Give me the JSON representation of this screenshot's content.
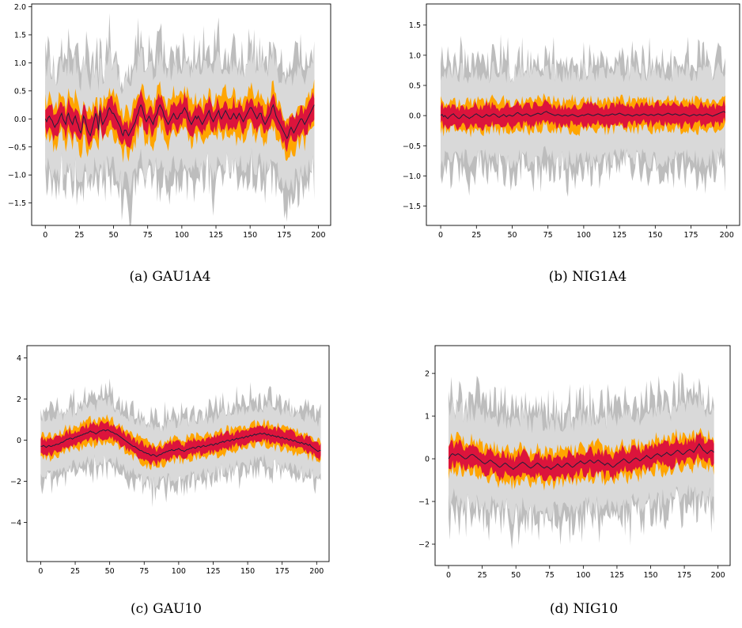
{
  "colors": {
    "outer_band": "#d9d9d9",
    "outer_band_extreme": "#bdbdbd",
    "mid_band": "#ffa500",
    "inner_band": "#dc143c",
    "center_line": "#1f1f3a"
  },
  "chart_data": [
    {
      "type": "area",
      "id": "a",
      "caption": "(a)  GAU1A4",
      "x_range": [
        0,
        199
      ],
      "xlim": [
        -10,
        209
      ],
      "ylim": [
        -1.9,
        2.05
      ],
      "xticks": [
        0,
        25,
        50,
        75,
        100,
        125,
        150,
        175,
        200
      ],
      "yticks": [
        -1.5,
        -1.0,
        -0.5,
        0.0,
        0.5,
        1.0,
        1.5,
        2.0
      ],
      "ytick_labels": [
        "−1.5",
        "−1.0",
        "−0.5",
        "0.0",
        "0.5",
        "1.0",
        "1.5",
        "2.0"
      ],
      "series": [
        {
          "role": "outer",
          "values": [
            0.0,
            -0.05,
            0.02,
            0.05,
            0.0,
            -0.03,
            -0.1,
            -0.15,
            -0.1,
            -0.08,
            -0.02,
            0.05,
            0.1,
            0.0,
            -0.05,
            -0.1,
            0.05,
            0.1,
            0.0,
            -0.05,
            -0.1,
            0.0,
            0.05,
            -0.05,
            -0.1,
            -0.2,
            -0.25,
            -0.15,
            0.05,
            0.0,
            -0.1,
            -0.2,
            -0.25,
            -0.3,
            -0.2,
            -0.1,
            0.0,
            0.1,
            0.0,
            -0.2,
            0.15,
            0.0,
            -0.1,
            -0.05,
            0.0,
            0.05,
            0.15,
            0.2,
            0.15,
            0.1,
            0.1,
            0.05,
            0.0,
            -0.05,
            -0.1,
            -0.15,
            -0.25,
            -0.3,
            -0.2,
            -0.2,
            -0.25,
            -0.3,
            -0.25,
            -0.2,
            -0.15,
            -0.1,
            -0.05,
            0.05,
            0.1,
            0.2,
            0.25,
            0.2,
            0.1,
            0.0,
            -0.05,
            0.0,
            0.05,
            0.0,
            -0.05,
            -0.1,
            0.0,
            0.05,
            0.1,
            0.2,
            0.25,
            0.2,
            0.15,
            0.05,
            0.0,
            -0.05,
            -0.1,
            -0.05,
            0.0,
            0.05,
            0.1,
            0.05,
            0.0,
            0.0,
            0.05,
            0.1,
            0.1,
            0.15,
            0.2,
            0.15,
            0.1,
            0.0,
            -0.05,
            -0.1,
            -0.05,
            0.0,
            0.05,
            0.0,
            0.05,
            0.0,
            -0.05,
            -0.1,
            -0.05,
            0.0,
            0.05,
            0.1,
            0.15,
            0.05,
            0.0,
            -0.05,
            0.0,
            0.05,
            0.1,
            0.15,
            0.05,
            0.0,
            0.05,
            0.1,
            0.15,
            0.1,
            0.05,
            0.0,
            0.0,
            0.05,
            0.1,
            0.05,
            0.0,
            0.05,
            0.1,
            0.05,
            0.0,
            -0.05,
            0.0,
            0.05,
            0.1,
            0.15,
            0.2,
            0.2,
            0.15,
            0.1,
            0.05,
            0.0,
            0.05,
            0.1,
            0.1,
            0.0,
            -0.05,
            -0.1,
            -0.05,
            0.0,
            0.05,
            0.1,
            0.2,
            0.25,
            0.15,
            0.05,
            0.0,
            -0.05,
            -0.1,
            -0.15,
            -0.2,
            -0.25,
            -0.3,
            -0.35,
            -0.3,
            -0.2,
            -0.15,
            -0.2,
            -0.25,
            -0.2,
            -0.15,
            -0.1,
            -0.05,
            0.0,
            0.0,
            -0.05,
            -0.1,
            -0.05,
            0.0,
            0.05,
            0.1,
            0.15,
            0.2,
            0.25
          ]
        },
        {
          "role": "outer_width",
          "values": [
            0.9
          ]
        },
        {
          "role": "mid_width",
          "values": [
            0.36
          ]
        },
        {
          "role": "inner_width",
          "values": [
            0.22
          ]
        }
      ]
    },
    {
      "type": "area",
      "id": "b",
      "caption": "(b)  NIG1A4",
      "x_range": [
        0,
        199
      ],
      "xlim": [
        -10,
        209
      ],
      "ylim": [
        -1.82,
        1.85
      ],
      "xticks": [
        0,
        25,
        50,
        75,
        100,
        125,
        150,
        175,
        200
      ],
      "yticks": [
        -1.5,
        -1.0,
        -0.5,
        0.0,
        0.5,
        1.0,
        1.5
      ],
      "ytick_labels": [
        "−1.5",
        "−1.0",
        "−0.5",
        "0.0",
        "0.5",
        "1.0",
        "1.5"
      ],
      "series": [
        {
          "role": "outer",
          "values": [
            0.0,
            0.02,
            -0.02,
            0.0,
            -0.03,
            -0.05,
            -0.02,
            0.0,
            0.02,
            0.03,
            0.0,
            -0.02,
            -0.04,
            -0.05,
            -0.03,
            0.0,
            0.02,
            0.0,
            -0.02,
            -0.03,
            -0.05,
            -0.03,
            -0.02,
            0.0,
            0.02,
            0.03,
            0.01,
            0.0,
            -0.02,
            -0.03,
            -0.02,
            0.0,
            0.02,
            0.0,
            -0.01,
            0.0,
            0.02,
            0.03,
            0.02,
            0.0,
            -0.02,
            -0.03,
            -0.01,
            0.0,
            0.02,
            0.0,
            -0.02,
            0.0,
            0.01,
            0.0,
            -0.01,
            0.0,
            0.02,
            0.04,
            0.05,
            0.03,
            0.02,
            0.0,
            0.01,
            0.02,
            0.03,
            0.02,
            0.0,
            -0.01,
            0.0,
            0.01,
            0.02,
            0.03,
            0.04,
            0.03,
            0.02,
            0.03,
            0.05,
            0.06,
            0.07,
            0.05,
            0.04,
            0.03,
            0.02,
            0.01,
            0.0,
            0.01,
            0.02,
            0.01,
            0.0,
            -0.01,
            0.0,
            0.01,
            0.0,
            -0.01,
            0.0,
            0.01,
            0.02,
            0.01,
            0.0,
            -0.01,
            -0.02,
            -0.01,
            0.0,
            0.01,
            0.0,
            0.01,
            0.02,
            0.03,
            0.02,
            0.01,
            0.0,
            0.0,
            0.01,
            0.02,
            0.03,
            0.02,
            0.01,
            0.0,
            -0.01,
            0.0,
            0.01,
            0.0,
            0.01,
            0.02,
            0.03,
            0.02,
            0.01,
            0.02,
            0.03,
            0.04,
            0.03,
            0.02,
            0.01,
            0.0,
            0.01,
            0.02,
            0.01,
            0.0,
            -0.01,
            0.0,
            0.01,
            0.02,
            0.01,
            0.0,
            0.01,
            0.02,
            0.03,
            0.02,
            0.01,
            0.0,
            0.01,
            0.02,
            0.01,
            0.0,
            0.01,
            0.02,
            0.03,
            0.02,
            0.01,
            0.0,
            0.01,
            0.02,
            0.03,
            0.04,
            0.03,
            0.02,
            0.01,
            0.02,
            0.03,
            0.02,
            0.01,
            0.0,
            0.01,
            0.02,
            0.03,
            0.02,
            0.01,
            0.0,
            -0.01,
            0.0,
            0.01,
            0.02,
            0.01,
            0.0,
            0.01,
            0.02,
            0.01,
            0.0,
            0.01,
            0.02,
            0.03,
            0.02,
            0.01,
            0.0,
            -0.01,
            0.0,
            0.01,
            0.02,
            0.03,
            0.04,
            0.05,
            0.06,
            0.07,
            0.05
          ]
        },
        {
          "role": "outer_width",
          "values": [
            0.72
          ]
        },
        {
          "role": "mid_width",
          "values": [
            0.24
          ]
        },
        {
          "role": "inner_width",
          "values": [
            0.17
          ]
        }
      ]
    },
    {
      "type": "area",
      "id": "c",
      "caption": "(c)  GAU10",
      "x_range": [
        0,
        199
      ],
      "xlim": [
        -10,
        209
      ],
      "ylim": [
        -5.9,
        4.6
      ],
      "xticks": [
        0,
        25,
        50,
        75,
        100,
        125,
        150,
        175,
        200
      ],
      "yticks": [
        -4,
        -2,
        0,
        2,
        4
      ],
      "ytick_labels": [
        "−4",
        "−2",
        "0",
        "2",
        "4"
      ],
      "series": [
        {
          "role": "outer",
          "values": [
            -0.3,
            -0.3,
            -0.25,
            -0.3,
            -0.35,
            -0.3,
            -0.25,
            -0.3,
            -0.3,
            -0.25,
            -0.25,
            -0.2,
            -0.2,
            -0.2,
            -0.15,
            -0.1,
            -0.1,
            -0.05,
            0.0,
            0.05,
            0.05,
            0.1,
            0.1,
            0.05,
            0.1,
            0.15,
            0.15,
            0.2,
            0.2,
            0.25,
            0.25,
            0.3,
            0.3,
            0.35,
            0.35,
            0.4,
            0.45,
            0.4,
            0.4,
            0.35,
            0.3,
            0.35,
            0.4,
            0.45,
            0.45,
            0.5,
            0.5,
            0.45,
            0.5,
            0.5,
            0.45,
            0.4,
            0.4,
            0.35,
            0.3,
            0.3,
            0.25,
            0.2,
            0.15,
            0.1,
            0.05,
            0.0,
            -0.05,
            -0.1,
            -0.15,
            -0.2,
            -0.25,
            -0.3,
            -0.3,
            -0.35,
            -0.4,
            -0.45,
            -0.5,
            -0.5,
            -0.55,
            -0.6,
            -0.6,
            -0.65,
            -0.65,
            -0.7,
            -0.75,
            -0.7,
            -0.7,
            -0.75,
            -0.8,
            -0.75,
            -0.7,
            -0.7,
            -0.65,
            -0.6,
            -0.6,
            -0.55,
            -0.55,
            -0.5,
            -0.5,
            -0.45,
            -0.5,
            -0.5,
            -0.45,
            -0.45,
            -0.4,
            -0.45,
            -0.5,
            -0.5,
            -0.55,
            -0.5,
            -0.45,
            -0.45,
            -0.4,
            -0.4,
            -0.35,
            -0.35,
            -0.4,
            -0.35,
            -0.3,
            -0.3,
            -0.35,
            -0.3,
            -0.25,
            -0.3,
            -0.3,
            -0.25,
            -0.25,
            -0.2,
            -0.2,
            -0.25,
            -0.2,
            -0.15,
            -0.2,
            -0.15,
            -0.1,
            -0.1,
            -0.05,
            -0.1,
            -0.05,
            0.0,
            0.0,
            -0.05,
            0.0,
            0.05,
            0.0,
            0.05,
            0.1,
            0.05,
            0.1,
            0.1,
            0.15,
            0.1,
            0.15,
            0.2,
            0.15,
            0.2,
            0.25,
            0.2,
            0.25,
            0.3,
            0.25,
            0.3,
            0.3,
            0.35,
            0.3,
            0.3,
            0.35,
            0.3,
            0.25,
            0.3,
            0.25,
            0.2,
            0.25,
            0.2,
            0.2,
            0.15,
            0.2,
            0.15,
            0.1,
            0.15,
            0.1,
            0.05,
            0.1,
            0.05,
            0.0,
            0.05,
            0.0,
            -0.05,
            0.0,
            -0.05,
            -0.1,
            -0.1,
            -0.15,
            -0.1,
            -0.15,
            -0.2,
            -0.15,
            -0.2,
            -0.25,
            -0.2,
            -0.3,
            -0.35,
            -0.4,
            -0.45,
            -0.5,
            -0.55,
            -0.5,
            -0.5
          ]
        },
        {
          "role": "outer_width",
          "values": [
            1.35
          ]
        },
        {
          "role": "mid_width",
          "values": [
            0.55
          ]
        },
        {
          "role": "inner_width",
          "values": [
            0.38
          ]
        }
      ]
    },
    {
      "type": "area",
      "id": "d",
      "caption": "(d)  NIG10",
      "x_range": [
        0,
        199
      ],
      "xlim": [
        -10,
        209
      ],
      "ylim": [
        -2.5,
        2.65
      ],
      "xticks": [
        0,
        25,
        50,
        75,
        100,
        125,
        150,
        175,
        200
      ],
      "yticks": [
        -2,
        -1,
        0,
        1,
        2
      ],
      "ytick_labels": [
        "−2",
        "−1",
        "0",
        "1",
        "2"
      ],
      "series": [
        {
          "role": "outer",
          "values": [
            0.0,
            0.05,
            0.1,
            0.12,
            0.1,
            0.08,
            0.1,
            0.12,
            0.1,
            0.08,
            0.05,
            0.03,
            0.0,
            0.0,
            0.02,
            0.05,
            0.08,
            0.1,
            0.1,
            0.08,
            0.05,
            0.03,
            0.0,
            -0.02,
            -0.05,
            -0.08,
            -0.1,
            -0.12,
            -0.1,
            -0.08,
            -0.05,
            -0.03,
            -0.05,
            -0.08,
            -0.1,
            -0.12,
            -0.15,
            -0.18,
            -0.2,
            -0.18,
            -0.15,
            -0.12,
            -0.1,
            -0.12,
            -0.15,
            -0.18,
            -0.2,
            -0.22,
            -0.25,
            -0.22,
            -0.2,
            -0.18,
            -0.15,
            -0.12,
            -0.1,
            -0.08,
            -0.1,
            -0.12,
            -0.15,
            -0.18,
            -0.2,
            -0.22,
            -0.2,
            -0.18,
            -0.15,
            -0.12,
            -0.1,
            -0.12,
            -0.15,
            -0.18,
            -0.2,
            -0.22,
            -0.2,
            -0.18,
            -0.2,
            -0.22,
            -0.25,
            -0.22,
            -0.2,
            -0.18,
            -0.15,
            -0.12,
            -0.15,
            -0.18,
            -0.2,
            -0.18,
            -0.15,
            -0.12,
            -0.1,
            -0.12,
            -0.15,
            -0.18,
            -0.2,
            -0.18,
            -0.15,
            -0.12,
            -0.1,
            -0.08,
            -0.05,
            -0.08,
            -0.1,
            -0.12,
            -0.1,
            -0.08,
            -0.05,
            -0.03,
            -0.05,
            -0.08,
            -0.1,
            -0.08,
            -0.05,
            -0.03,
            -0.05,
            -0.08,
            -0.1,
            -0.12,
            -0.15,
            -0.12,
            -0.1,
            -0.12,
            -0.15,
            -0.18,
            -0.2,
            -0.18,
            -0.15,
            -0.12,
            -0.1,
            -0.08,
            -0.05,
            -0.03,
            0.0,
            -0.02,
            -0.05,
            -0.08,
            -0.1,
            -0.08,
            -0.05,
            -0.02,
            0.0,
            0.02,
            0.0,
            -0.02,
            -0.05,
            -0.03,
            0.0,
            0.02,
            0.05,
            0.08,
            0.05,
            0.03,
            0.0,
            0.02,
            0.05,
            0.08,
            0.1,
            0.12,
            0.1,
            0.08,
            0.05,
            0.08,
            0.1,
            0.12,
            0.15,
            0.12,
            0.1,
            0.08,
            0.1,
            0.12,
            0.15,
            0.18,
            0.2,
            0.18,
            0.15,
            0.12,
            0.1,
            0.12,
            0.15,
            0.18,
            0.2,
            0.22,
            0.2,
            0.18,
            0.15,
            0.2,
            0.25,
            0.3,
            0.35,
            0.3,
            0.25,
            0.2,
            0.18,
            0.15,
            0.12,
            0.15,
            0.18,
            0.2,
            0.18,
            0.15
          ]
        },
        {
          "role": "outer_width",
          "values": [
            1.05
          ]
        },
        {
          "role": "mid_width",
          "values": [
            0.38
          ]
        },
        {
          "role": "inner_width",
          "values": [
            0.26
          ]
        }
      ]
    }
  ]
}
